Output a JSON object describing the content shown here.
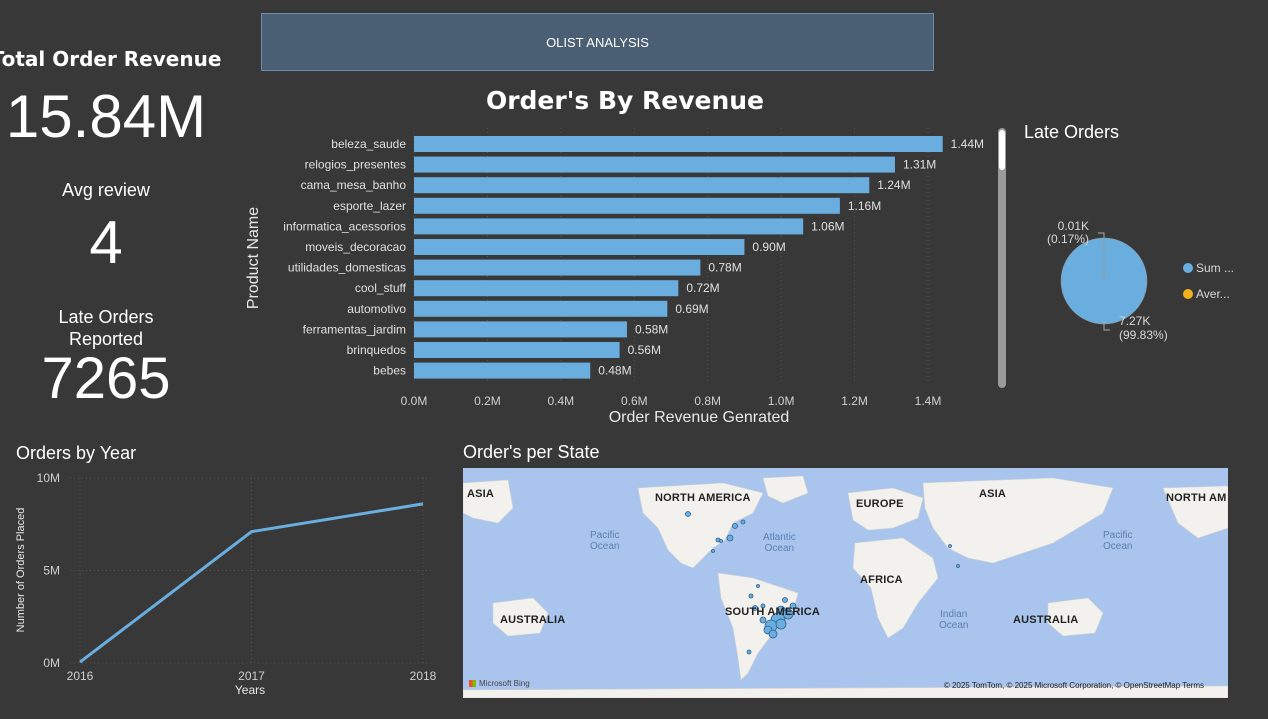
{
  "banner": {
    "title": "OLIST ANALYSIS"
  },
  "kpis": {
    "revenue_label": "Total Order Revenue",
    "revenue_value": "15.84M",
    "review_label": "Avg review",
    "review_value": "4",
    "late_label_line1": "Late Orders",
    "late_label_line2": "Reported",
    "late_value": "7265"
  },
  "bar_panel": {
    "title": "Order's By Revenue"
  },
  "late_panel": {
    "title": "Late Orders",
    "legend": [
      {
        "label": "Sum ...",
        "color": "#6aaee0"
      },
      {
        "label": "Aver...",
        "color": "#f2b21c"
      }
    ],
    "labels": {
      "small_value": "0.01K",
      "small_pct": "(0.17%)",
      "large_value": "7.27K",
      "large_pct": "(99.83%)"
    }
  },
  "year_panel": {
    "title": "Orders by Year"
  },
  "map_panel": {
    "title": "Order's per State",
    "continents": [
      "ASIA",
      "NORTH AMERICA",
      "EUROPE",
      "ASIA",
      "NORTH AM",
      "AFRICA",
      "SOUTH AMERICA",
      "AUSTRALIA",
      "AUSTRALIA"
    ],
    "oceans": [
      "Pacific\nOcean",
      "Atlantic\nOcean",
      "Indian\nOcean",
      "Pacific\nOcean"
    ],
    "attribution": "© 2025 TomTom, © 2025 Microsoft Corporation, © OpenStreetMap  Terms",
    "logo": "Microsoft Bing"
  },
  "chart_data": [
    {
      "type": "bar",
      "title": "Order's By Revenue",
      "xlabel": "Order Revenue Genrated",
      "ylabel": "Product Name",
      "categories": [
        "beleza_saude",
        "relogios_presentes",
        "cama_mesa_banho",
        "esporte_lazer",
        "informatica_acessorios",
        "moveis_decoracao",
        "utilidades_domesticas",
        "cool_stuff",
        "automotivo",
        "ferramentas_jardim",
        "brinquedos",
        "bebes"
      ],
      "values": [
        1.44,
        1.31,
        1.24,
        1.16,
        1.06,
        0.9,
        0.78,
        0.72,
        0.69,
        0.58,
        0.56,
        0.48
      ],
      "data_labels": [
        "1.44M",
        "1.31M",
        "1.24M",
        "1.16M",
        "1.06M",
        "0.90M",
        "0.78M",
        "0.72M",
        "0.69M",
        "0.58M",
        "0.56M",
        "0.48M"
      ],
      "x_ticks": [
        "0.0M",
        "0.2M",
        "0.4M",
        "0.6M",
        "0.8M",
        "1.0M",
        "1.2M",
        "1.4M"
      ],
      "xlim": [
        0,
        1.5
      ],
      "color": "#6aaee0",
      "grid": true
    },
    {
      "type": "pie",
      "title": "Late Orders",
      "values": [
        7.27,
        0.01
      ],
      "colors": [
        "#6aaee0",
        "#f2b21c"
      ]
    },
    {
      "type": "line",
      "title": "Orders by Year",
      "xlabel": "Years",
      "ylabel": "Number of Orders Placed",
      "x": [
        "2016",
        "2017",
        "2018"
      ],
      "values": [
        0.05,
        7.1,
        8.6
      ],
      "y_ticks": [
        "0M",
        "5M",
        "10M"
      ],
      "ylim": [
        0,
        10
      ],
      "color": "#6aaee0",
      "grid": true
    }
  ]
}
